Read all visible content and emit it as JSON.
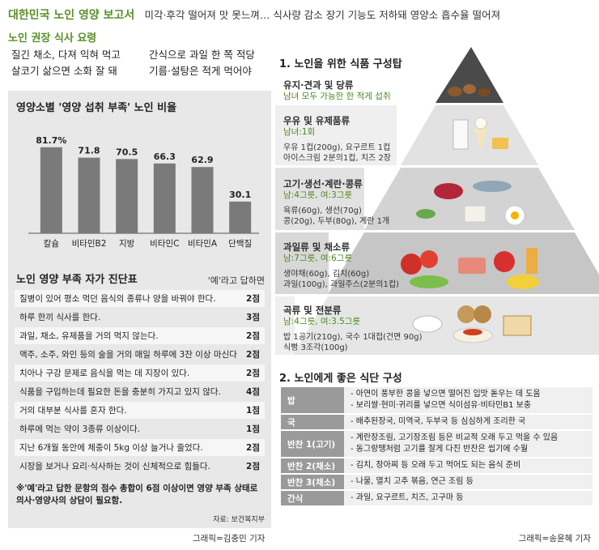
{
  "header": {
    "title": "대한민국 노인 영양 보고서",
    "subtitle": "미각·후각 떨어져 맛 못느껴… 식사량 감소   장기 기능도 저하돼 영양소 흡수율 떨어져"
  },
  "recommendations": {
    "title": "노인 권장 식사 요령",
    "items": [
      "질긴 채소, 다져 익혀 먹고",
      "간식으로 과일 한 쪽 적당",
      "살코기 삶으면 소화 잘 돼",
      "기름·설탕은 적게 먹어야"
    ]
  },
  "chart_data": {
    "type": "bar",
    "title": "영양소별 '영양 섭취 부족' 노인 비율",
    "categories": [
      "칼슘",
      "비타민B2",
      "지방",
      "비타민C",
      "비타민A",
      "단백질"
    ],
    "values": [
      81.7,
      71.8,
      70.5,
      66.3,
      62.9,
      30.1
    ],
    "value_labels": [
      "81.7%",
      "71.8",
      "70.5",
      "66.3",
      "62.9",
      "30.1"
    ],
    "ylim": [
      0,
      100
    ],
    "grid": false,
    "bar_color": "#7a7a7a"
  },
  "diagnosis": {
    "title": "노인 영양 부족 자가 진단표",
    "note": "'예'라고 답하면",
    "items": [
      {
        "q": "질병이 있어 평소 먹던 음식의 종류나 양을 바꿔야 한다.",
        "s": "2점"
      },
      {
        "q": "하루 한끼 식사를 한다.",
        "s": "3점"
      },
      {
        "q": "과일, 채소, 유제품을 거의 먹지 않는다.",
        "s": "2점"
      },
      {
        "q": "맥주, 소주, 와인 등의 술을 거의 매일 하루에 3잔 이상 마신다.",
        "s": "2점"
      },
      {
        "q": "치아나 구강 문제로 음식을 먹는 데 지장이 있다.",
        "s": "2점"
      },
      {
        "q": "식품을 구입하는데 필요한 돈을 충분히 가지고 있지 않다.",
        "s": "4점"
      },
      {
        "q": "거의 대부분 식사를 혼자 한다.",
        "s": "1점"
      },
      {
        "q": "하루에 먹는 약이 3종류 이상이다.",
        "s": "1점"
      },
      {
        "q": "지난 6개월 동안에 체중이 5kg 이상 늘거나 줄었다.",
        "s": "2점"
      },
      {
        "q": "시장을 보거나 요리·식사하는 것이 신체적으로 힘들다.",
        "s": "2점"
      }
    ],
    "footnote": "※'예'라고 답한 문항의 점수 총합이 6점 이상이면 영양 부족 상태로 의사·영양사의 상담이 필요함.",
    "source": "자료: 보건복지부",
    "credit": "그래픽=김충민 기자"
  },
  "pyramid": {
    "title": "1. 노인을 위한 식품 구성탑",
    "tiers": [
      {
        "name": "유지·견과 및 당류",
        "serving": "남녀 모두 가능한 한 적게 섭취",
        "detail": []
      },
      {
        "name": "우유 및 유제품류",
        "serving": "남녀:1회",
        "detail": [
          "우유 1컵(200g), 요구르트 1컵",
          "아이스크림 2분의1컵, 치즈 2장"
        ]
      },
      {
        "name": "고기·생선·계란·콩류",
        "serving": "남:4그릇, 여:3그릇",
        "detail": [
          "육류(60g), 생선(70g)",
          "콩(20g), 두부(80g), 계란 1개"
        ]
      },
      {
        "name": "과일류 및 채소류",
        "serving": "남:7그릇, 여:6그릇",
        "detail": [
          "생야채(60g), 김치(60g)",
          "과일(100g), 과일주스(2분의1컵)"
        ]
      },
      {
        "name": "곡류 및 전분류",
        "serving": "남:4그릇, 여:3.5그릇",
        "detail": [
          "밥 1공기(210g), 국수 1대접(건면 90g)",
          "식빵 3조각(100g)"
        ]
      }
    ]
  },
  "diet": {
    "title": "2. 노인에게 좋은 식단 구성",
    "rows": [
      {
        "k": "밥",
        "v": [
          "- 아연이 풍부한 콩을 넣으면 떨어진 입맛 돋우는 데 도움",
          "- 보리쌀·현미·귀리를 넣으면 식이섬유·비타민B1 보충"
        ]
      },
      {
        "k": "국",
        "v": [
          "- 배추된장국, 미역국, 두부국 등 심심하게 조리한 국"
        ]
      },
      {
        "k": "반찬 1(고기)",
        "v": [
          "- 계란장조림, 고기장조림 등은 비교적 오래 두고 먹을 수 있음",
          "- 동그랑땡처럼 고기를 잘게 다진 반찬은 씹기에 수월"
        ]
      },
      {
        "k": "반찬 2(채소)",
        "v": [
          "- 김치, 장아찌 등 오래 두고 먹어도 되는 음식 준비"
        ]
      },
      {
        "k": "반찬 3(채소)",
        "v": [
          "- 나물, 멸치 고추 볶음, 연근 조림 등"
        ]
      },
      {
        "k": "간식",
        "v": [
          "- 과일, 요구르트, 치즈, 고구마 등"
        ]
      }
    ],
    "credit": "그래픽=송윤혜 기자"
  }
}
